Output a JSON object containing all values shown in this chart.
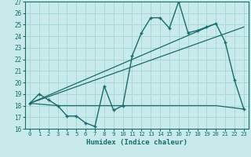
{
  "title": "",
  "xlabel": "Humidex (Indice chaleur)",
  "ylabel": "",
  "background_color": "#c8eaea",
  "grid_color": "#a8d8d8",
  "line_color": "#1a6b6b",
  "xlim": [
    -0.5,
    23.5
  ],
  "ylim": [
    16,
    27
  ],
  "xticks": [
    0,
    1,
    2,
    3,
    4,
    5,
    6,
    7,
    8,
    9,
    10,
    11,
    12,
    13,
    14,
    15,
    16,
    17,
    18,
    19,
    20,
    21,
    22,
    23
  ],
  "yticks": [
    16,
    17,
    18,
    19,
    20,
    21,
    22,
    23,
    24,
    25,
    26,
    27
  ],
  "line1_x": [
    0,
    1,
    2,
    3,
    4,
    5,
    6,
    7,
    8,
    9,
    10,
    11,
    12,
    13,
    14,
    15,
    16,
    17,
    18,
    19,
    20,
    21,
    22,
    23
  ],
  "line1_y": [
    18.2,
    19.0,
    18.5,
    18.0,
    17.1,
    17.1,
    16.5,
    16.2,
    19.7,
    17.6,
    18.0,
    22.3,
    24.3,
    25.6,
    25.6,
    24.7,
    27.0,
    24.3,
    24.5,
    24.8,
    25.1,
    23.5,
    20.2,
    17.7
  ],
  "line2_x": [
    0,
    3,
    10,
    20,
    23
  ],
  "line2_y": [
    18.2,
    18.0,
    18.0,
    18.0,
    17.7
  ],
  "line3_x": [
    0,
    23
  ],
  "line3_y": [
    18.2,
    24.8
  ],
  "line4_x": [
    0,
    20
  ],
  "line4_y": [
    18.2,
    25.1
  ]
}
